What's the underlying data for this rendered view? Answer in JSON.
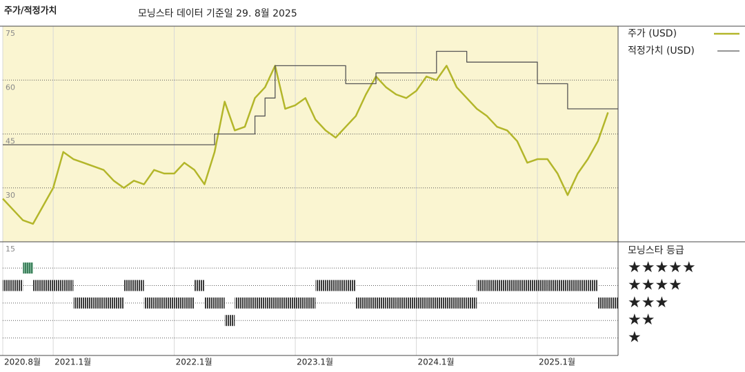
{
  "chart_data": [
    {
      "type": "line",
      "title": "주가/적정가치",
      "subtitle": "모닝스타 데이터 기준일 29. 8월 2025",
      "xlim": [
        "2020-08",
        "2025-09"
      ],
      "xticks": [
        {
          "value": "2020-08",
          "label": "2020.8월"
        },
        {
          "value": "2021-01",
          "label": "2021.1월"
        },
        {
          "value": "2022-01",
          "label": "2022.1월"
        },
        {
          "value": "2023-01",
          "label": "2023.1월"
        },
        {
          "value": "2024-01",
          "label": "2024.1월"
        },
        {
          "value": "2025-01",
          "label": "2025.1월"
        }
      ],
      "ylim": [
        15,
        75
      ],
      "yticks": [
        15,
        30,
        45,
        60,
        75
      ],
      "grid": true,
      "series": [
        {
          "name": "주가 (USD)",
          "color": "#b3b62a",
          "x": [
            "2020-08",
            "2020-09",
            "2020-10",
            "2020-11",
            "2020-12",
            "2021-01",
            "2021-02",
            "2021-03",
            "2021-04",
            "2021-05",
            "2021-06",
            "2021-07",
            "2021-08",
            "2021-09",
            "2021-10",
            "2021-11",
            "2021-12",
            "2022-01",
            "2022-02",
            "2022-03",
            "2022-04",
            "2022-05",
            "2022-06",
            "2022-07",
            "2022-08",
            "2022-09",
            "2022-10",
            "2022-11",
            "2022-12",
            "2023-01",
            "2023-02",
            "2023-03",
            "2023-04",
            "2023-05",
            "2023-06",
            "2023-07",
            "2023-08",
            "2023-09",
            "2023-10",
            "2023-11",
            "2023-12",
            "2024-01",
            "2024-02",
            "2024-03",
            "2024-04",
            "2024-05",
            "2024-06",
            "2024-07",
            "2024-08",
            "2024-09",
            "2024-10",
            "2024-11",
            "2024-12",
            "2025-01",
            "2025-02",
            "2025-03",
            "2025-04",
            "2025-05",
            "2025-06",
            "2025-07",
            "2025-08"
          ],
          "values": [
            27,
            24,
            21,
            20,
            25,
            30,
            40,
            38,
            37,
            36,
            35,
            32,
            30,
            32,
            31,
            35,
            34,
            34,
            37,
            35,
            31,
            40,
            54,
            46,
            47,
            55,
            58,
            64,
            52,
            53,
            55,
            49,
            46,
            44,
            47,
            50,
            56,
            61,
            58,
            56,
            55,
            57,
            61,
            60,
            64,
            58,
            55,
            52,
            50,
            47,
            46,
            43,
            37,
            38,
            38,
            34,
            28,
            34,
            38,
            43,
            51
          ]
        },
        {
          "name": "적정가치 (USD)",
          "color": "#555555",
          "step": true,
          "x": [
            "2020-08",
            "2022-05",
            "2022-09",
            "2022-10",
            "2022-11",
            "2023-06",
            "2023-09",
            "2024-03",
            "2024-06",
            "2025-01",
            "2025-04"
          ],
          "values": [
            42,
            45,
            50,
            55,
            64,
            59,
            62,
            68,
            65,
            59,
            52
          ]
        }
      ]
    },
    {
      "type": "rating",
      "title": "모닝스타 등급",
      "color": "#3a3a3a",
      "top_color": "#3d7f5c",
      "x": [
        "2020-08",
        "2020-09",
        "2020-10",
        "2020-11",
        "2020-12",
        "2021-01",
        "2021-02",
        "2021-03",
        "2021-04",
        "2021-05",
        "2021-06",
        "2021-07",
        "2021-08",
        "2021-09",
        "2021-10",
        "2021-11",
        "2021-12",
        "2022-01",
        "2022-02",
        "2022-03",
        "2022-04",
        "2022-05",
        "2022-06",
        "2022-07",
        "2022-08",
        "2022-09",
        "2022-10",
        "2022-11",
        "2022-12",
        "2023-01",
        "2023-02",
        "2023-03",
        "2023-04",
        "2023-05",
        "2023-06",
        "2023-07",
        "2023-08",
        "2023-09",
        "2023-10",
        "2023-11",
        "2023-12",
        "2024-01",
        "2024-02",
        "2024-03",
        "2024-04",
        "2024-05",
        "2024-06",
        "2024-07",
        "2024-08",
        "2024-09",
        "2024-10",
        "2024-11",
        "2024-12",
        "2025-01",
        "2025-02",
        "2025-03",
        "2025-04",
        "2025-05",
        "2025-06",
        "2025-07",
        "2025-08"
      ],
      "values": [
        4,
        4,
        5,
        4,
        4,
        4,
        4,
        3,
        3,
        3,
        3,
        3,
        4,
        4,
        3,
        3,
        3,
        3,
        3,
        4,
        3,
        3,
        2,
        3,
        3,
        3,
        3,
        3,
        3,
        3,
        3,
        4,
        4,
        4,
        4,
        3,
        3,
        3,
        3,
        3,
        3,
        3,
        3,
        3,
        3,
        3,
        3,
        4,
        4,
        4,
        4,
        4,
        4,
        4,
        4,
        4,
        4,
        4,
        4,
        3,
        3
      ],
      "ylim": [
        0,
        6.5
      ],
      "yticks": [
        {
          "value": 5,
          "label": "★★★★★"
        },
        {
          "value": 4,
          "label": "★★★★"
        },
        {
          "value": 3,
          "label": "★★★"
        },
        {
          "value": 2,
          "label": "★★"
        },
        {
          "value": 1,
          "label": "★"
        }
      ]
    }
  ]
}
